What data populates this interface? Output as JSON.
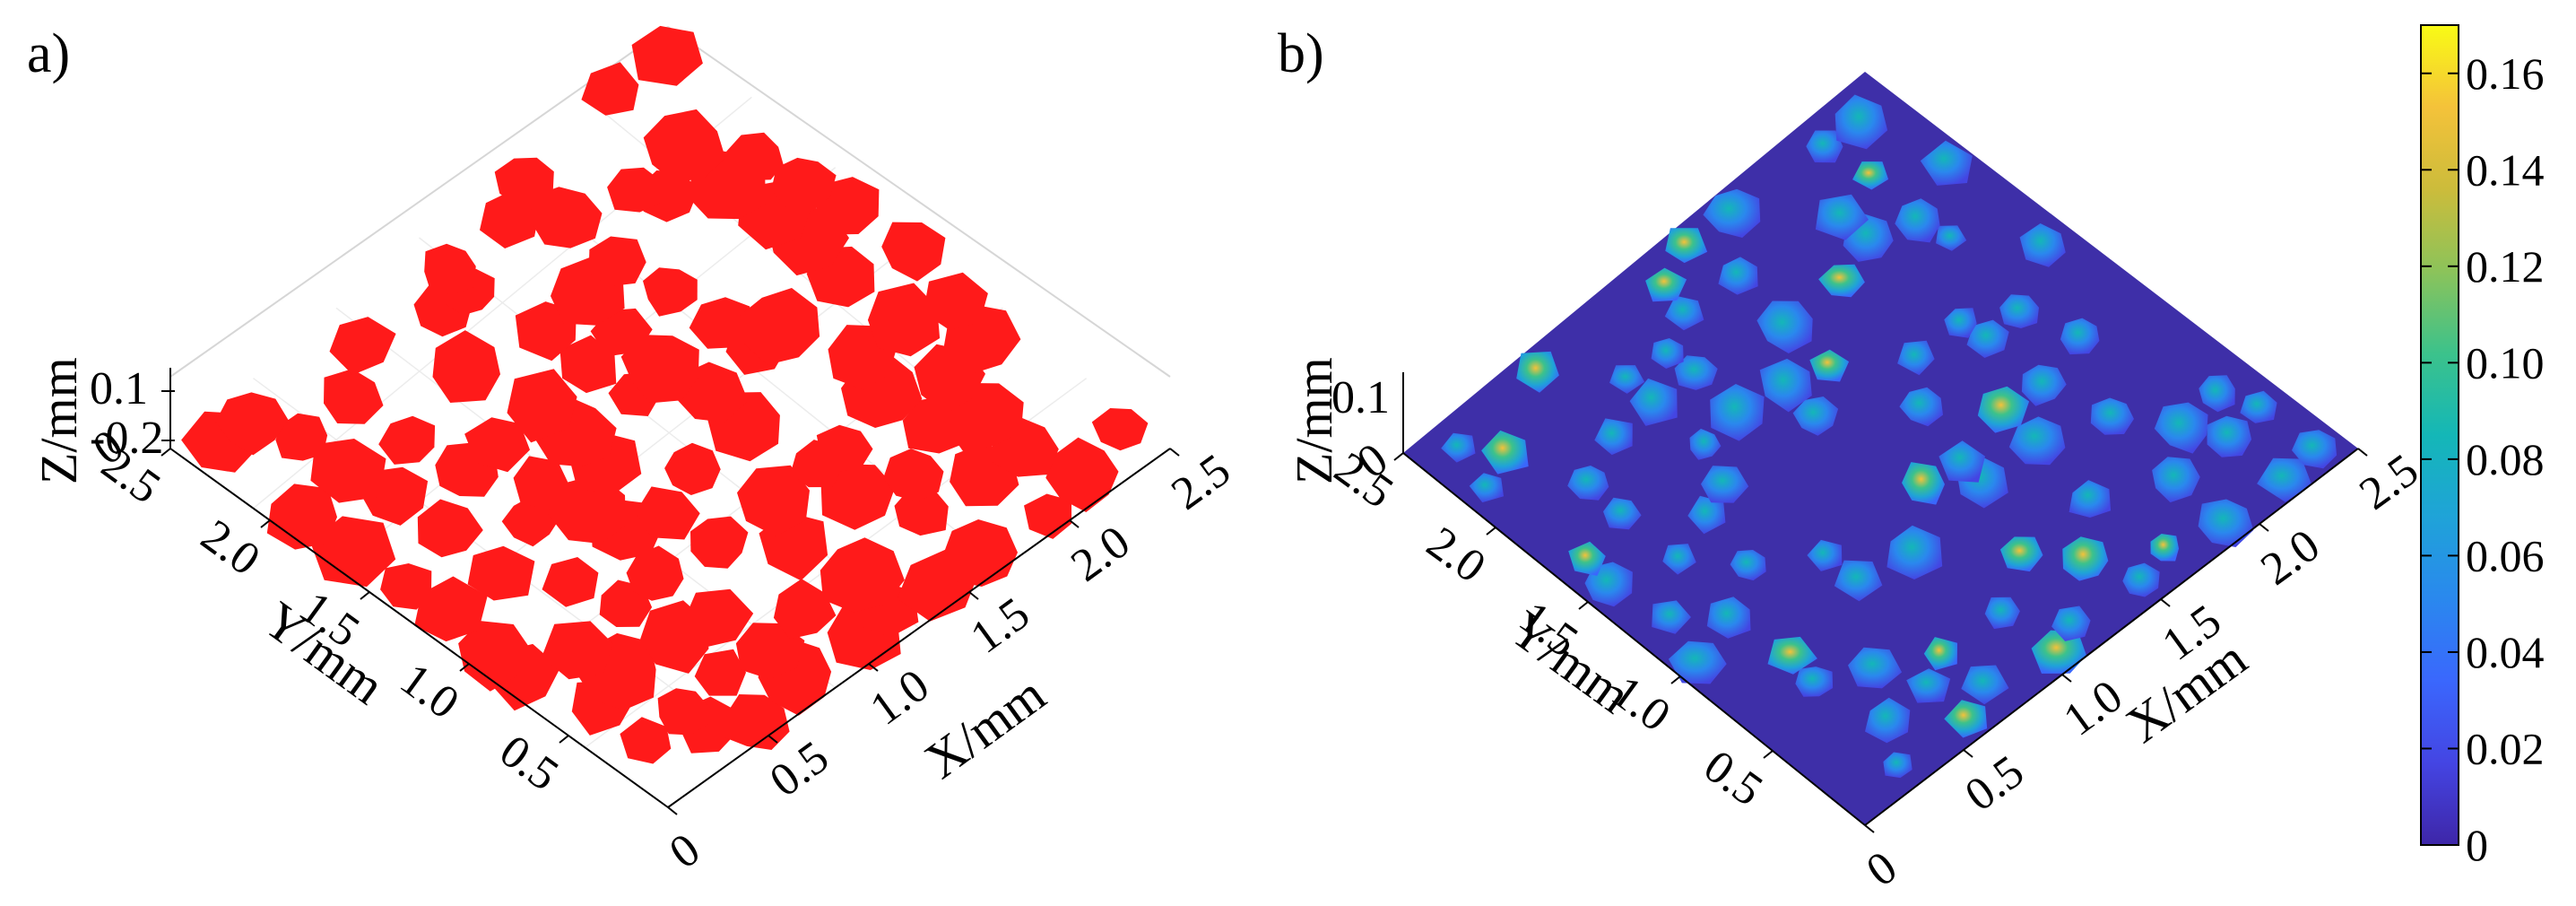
{
  "chart_data": [
    {
      "type": "surface3d",
      "panel_label": "a)",
      "xlabel": "X/mm",
      "ylabel": "Y/mm",
      "zlabel": "Z/mm",
      "x_ticks": [
        "0",
        "0.5",
        "1.0",
        "1.5",
        "2.0",
        "2.5"
      ],
      "y_ticks": [
        "0.5",
        "1.0",
        "1.5",
        "2.0",
        "2.5"
      ],
      "y_origin": "0",
      "z_ticks": [
        "0.1",
        "-0.2"
      ],
      "xlim": [
        0,
        2.5
      ],
      "ylim": [
        0,
        2.5
      ],
      "surface_color": "#ff1a1a"
    },
    {
      "type": "surface3d",
      "panel_label": "b)",
      "xlabel": "X/mm",
      "ylabel": "Y/mm",
      "zlabel": "Z/mm",
      "x_ticks": [
        "0",
        "0.5",
        "1.0",
        "1.5",
        "2.0",
        "2.5"
      ],
      "y_ticks": [
        "0.5",
        "1.0",
        "1.5",
        "2.0",
        "2.5"
      ],
      "y_origin": "0",
      "z_ticks": [
        "0.1"
      ],
      "xlim": [
        0,
        2.5
      ],
      "ylim": [
        0,
        2.5
      ],
      "colormap": "parula",
      "base_color": "#3e2fa8",
      "colorbar": {
        "ticks": [
          "0",
          "0.02",
          "0.04",
          "0.06",
          "0.08",
          "0.10",
          "0.12",
          "0.14",
          "0.16"
        ],
        "range": [
          0,
          0.17
        ],
        "colors": [
          "#3e26a8",
          "#4445e3",
          "#3a67fd",
          "#2a88ee",
          "#1fa3d8",
          "#14b7b7",
          "#3cc28b",
          "#8cc35a",
          "#ccbc3b",
          "#f4c23a",
          "#f9fb15"
        ]
      }
    }
  ]
}
